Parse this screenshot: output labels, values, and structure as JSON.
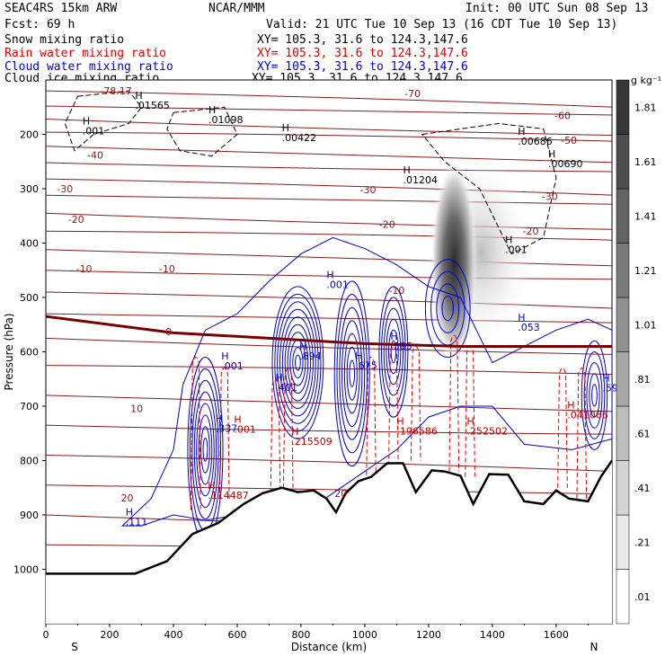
{
  "header": {
    "title": "SEAC4RS 15km ARW",
    "forecast": "Fcst:    69 h",
    "center": "NCAR/MMM",
    "init": "Init: 00 UTC Sun 08 Sep 13",
    "valid": "Valid: 21 UTC Tue 10 Sep 13 (16 CDT Tue 10 Sep 13)",
    "fields": [
      {
        "name": "Snow mixing ratio",
        "xy": "XY= 105.3, 31.6 to 124.3,147.6",
        "color": "#000000"
      },
      {
        "name": "Rain water mixing ratio",
        "xy": "XY= 105.3, 31.6 to 124.3,147.6",
        "color": "#e00000"
      },
      {
        "name": "Cloud water mixing ratio",
        "xy": "XY= 105.3, 31.6 to 124.3,147.6",
        "color": "#0000d0"
      },
      {
        "name": "Cloud ice mixing ratio",
        "xy": "XY= 105.3, 31.6 to 124.3,147.6",
        "color": "#000000"
      }
    ]
  },
  "chart_data": {
    "type": "cross-section",
    "xlabel": "Distance (km)",
    "ylabel": "Pressure (hPa)",
    "xlim": [
      0,
      1775
    ],
    "ylim": [
      1100,
      100
    ],
    "x_ticks": [
      0,
      200,
      400,
      600,
      800,
      1000,
      1200,
      1400,
      1600
    ],
    "y_ticks": [
      200,
      300,
      400,
      500,
      600,
      700,
      800,
      900,
      1000
    ],
    "end_labels": [
      "S",
      "N"
    ],
    "colorbar": {
      "unit": "g kg⁻¹",
      "levels": [
        ".01",
        ".21",
        ".41",
        ".61",
        ".81",
        "1.01",
        "1.21",
        "1.41",
        "1.61",
        "1.81"
      ]
    },
    "temperature_isotherms_C": [
      {
        "label": "-78.17",
        "x": 220,
        "p": 120
      },
      {
        "label": "-70",
        "x": 1150,
        "p": 125
      },
      {
        "label": "-60",
        "x": 1620,
        "p": 165
      },
      {
        "label": "-50",
        "x": 1640,
        "p": 211
      },
      {
        "label": "-40",
        "x": 155,
        "p": 238
      },
      {
        "label": "-30",
        "x": 60,
        "p": 300
      },
      {
        "label": "-30",
        "x": 1010,
        "p": 302
      },
      {
        "label": "-30",
        "x": 1580,
        "p": 314
      },
      {
        "label": "-20",
        "x": 95,
        "p": 356
      },
      {
        "label": "-20",
        "x": 1070,
        "p": 365
      },
      {
        "label": "-20",
        "x": 1520,
        "p": 378
      },
      {
        "label": "-10",
        "x": 120,
        "p": 447
      },
      {
        "label": "-10",
        "x": 380,
        "p": 447
      },
      {
        "label": "-10",
        "x": 1100,
        "p": 487
      },
      {
        "label": "0",
        "x": 385,
        "p": 563
      },
      {
        "label": "10",
        "x": 285,
        "p": 704
      },
      {
        "label": "20",
        "x": 255,
        "p": 869
      },
      {
        "label": "20",
        "x": 925,
        "p": 860
      }
    ],
    "maxima_labels": [
      {
        "field": "cloud ice",
        "label": ".01565",
        "x": 280,
        "p": 153
      },
      {
        "field": "cloud ice",
        "label": ".01098",
        "x": 510,
        "p": 179
      },
      {
        "field": "cloud ice",
        "label": ".00422",
        "x": 740,
        "p": 212
      },
      {
        "field": "cloud ice",
        "label": ".01204",
        "x": 1120,
        "p": 290
      },
      {
        "field": "cloud ice",
        "label": ".00686",
        "x": 1480,
        "p": 219
      },
      {
        "field": "cloud ice",
        "label": ".00690",
        "x": 1575,
        "p": 260
      },
      {
        "field": "cloud ice",
        "label": ".001",
        "x": 115,
        "p": 200
      },
      {
        "field": "cloud ice",
        "label": ".001",
        "x": 1440,
        "p": 418
      },
      {
        "field": "cloud water",
        "label": ".894",
        "x": 795,
        "p": 614
      },
      {
        "field": "cloud water",
        "label": ".675",
        "x": 970,
        "p": 631
      },
      {
        "field": "cloud water",
        "label": ".585",
        "x": 1080,
        "p": 596
      },
      {
        "field": "cloud water",
        "label": ".401",
        "x": 720,
        "p": 672
      },
      {
        "field": "cloud water",
        "label": ".053",
        "x": 1480,
        "p": 561
      },
      {
        "field": "cloud water",
        "label": ".337",
        "x": 532,
        "p": 747
      },
      {
        "field": "cloud water",
        "label": ".111",
        "x": 250,
        "p": 919
      },
      {
        "field": "cloud water",
        "label": ".596",
        "x": 1745,
        "p": 673
      },
      {
        "field": "cloud water",
        "label": ".001",
        "x": 880,
        "p": 483
      },
      {
        "field": "cloud water",
        "label": ".001",
        "x": 550,
        "p": 632
      },
      {
        "field": "rain water",
        "label": ".215509",
        "x": 770,
        "p": 771
      },
      {
        "field": "rain water",
        "label": ".196586",
        "x": 1100,
        "p": 752
      },
      {
        "field": "rain water",
        "label": ".252502",
        "x": 1320,
        "p": 752
      },
      {
        "field": "rain water",
        "label": ".041066",
        "x": 1635,
        "p": 722
      },
      {
        "field": "rain water",
        "label": ".114487",
        "x": 508,
        "p": 870
      },
      {
        "field": "rain water",
        "label": ".001",
        "x": 590,
        "p": 749
      }
    ],
    "snow_core": {
      "x": 1280,
      "p_top": 250,
      "p_bottom": 620,
      "max_g_per_kg": 1.81
    },
    "freezing_level_hPa": [
      [
        0,
        535
      ],
      [
        400,
        565
      ],
      [
        700,
        575
      ],
      [
        1000,
        585
      ],
      [
        1300,
        590
      ],
      [
        1775,
        590
      ]
    ],
    "terrain_hPa": [
      [
        0,
        1008
      ],
      [
        280,
        1008
      ],
      [
        380,
        985
      ],
      [
        460,
        935
      ],
      [
        540,
        915
      ],
      [
        620,
        880
      ],
      [
        680,
        860
      ],
      [
        740,
        850
      ],
      [
        790,
        858
      ],
      [
        840,
        855
      ],
      [
        880,
        870
      ],
      [
        910,
        895
      ],
      [
        940,
        860
      ],
      [
        980,
        838
      ],
      [
        1020,
        830
      ],
      [
        1070,
        805
      ],
      [
        1120,
        805
      ],
      [
        1160,
        858
      ],
      [
        1210,
        818
      ],
      [
        1250,
        820
      ],
      [
        1300,
        828
      ],
      [
        1340,
        880
      ],
      [
        1390,
        825
      ],
      [
        1450,
        826
      ],
      [
        1500,
        875
      ],
      [
        1560,
        880
      ],
      [
        1600,
        855
      ],
      [
        1640,
        870
      ],
      [
        1700,
        875
      ],
      [
        1740,
        830
      ],
      [
        1775,
        800
      ]
    ]
  }
}
